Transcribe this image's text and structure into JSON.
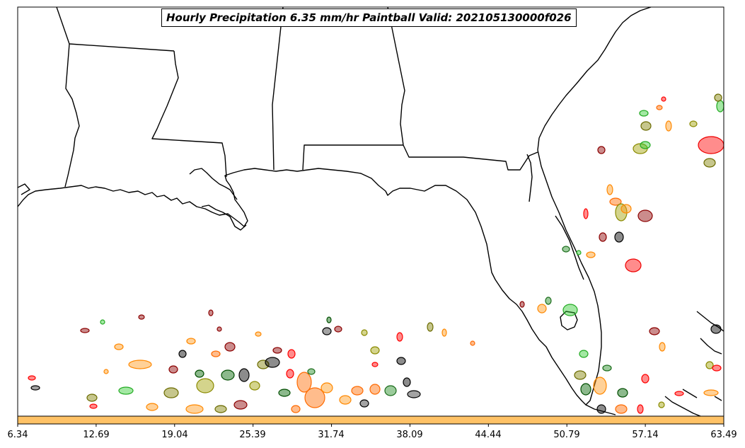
{
  "title": "Hourly Precipitation 6.35 mm/hr Paintball Valid: 202105130000f026",
  "colorbar": {
    "color": "#ffc266",
    "ticks": [
      "6.34",
      "12.69",
      "19.04",
      "25.39",
      "31.74",
      "38.09",
      "44.44",
      "50.79",
      "57.14",
      "63.49"
    ]
  },
  "member_colors": [
    "#ff0000",
    "#ff6a00",
    "#ff9a1a",
    "#8b0000",
    "#006400",
    "#228b22",
    "#32cd32",
    "#808000",
    "#a0a000",
    "#000000",
    "#333333",
    "#b5b53a"
  ]
}
